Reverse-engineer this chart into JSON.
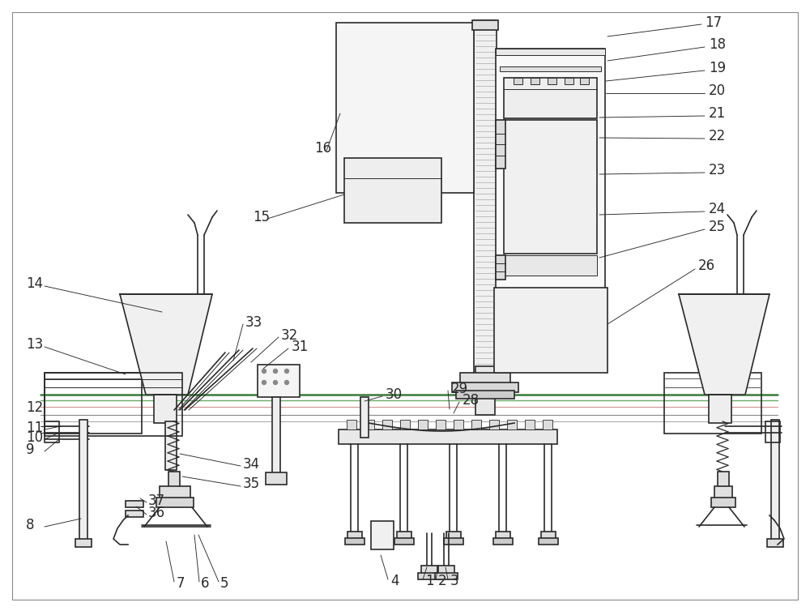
{
  "bg_color": "#ffffff",
  "lc": "#2a2a2a",
  "lc_green": "#4a8a4a",
  "lc_green2": "#88bb88",
  "lc_pink": "#cc8888",
  "fc_light": "#f2f2f2",
  "fc_mid": "#e0e0e0",
  "fc_dark": "#cccccc",
  "lw_main": 1.2,
  "lw_thin": 0.7,
  "lw_leader": 0.7,
  "fs_label": 12
}
